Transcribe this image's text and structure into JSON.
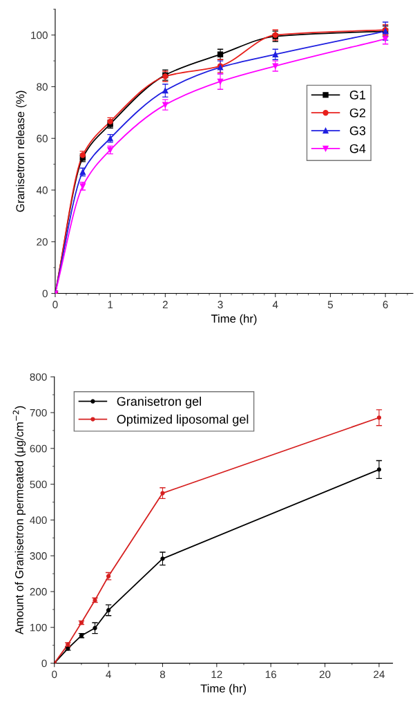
{
  "chart_data": [
    {
      "type": "line",
      "xlabel": "Time (hr)",
      "ylabel": "Granisetron release (%)",
      "x": [
        0,
        0.5,
        1,
        2,
        3,
        4,
        6
      ],
      "xlim": [
        0,
        6.5
      ],
      "ylim": [
        0,
        110
      ],
      "xticks": [
        0,
        1,
        2,
        3,
        4,
        5,
        6
      ],
      "yticks": [
        0,
        20,
        40,
        60,
        80,
        100
      ],
      "legend": "right",
      "grid": false,
      "line_style": "solid",
      "series": [
        {
          "name": "G1",
          "color": "#000000",
          "marker": "square",
          "values": [
            0,
            52.5,
            65.5,
            84.5,
            92.5,
            99.5,
            101.5
          ],
          "errors": [
            null,
            1.5,
            1.5,
            2,
            2,
            2,
            2
          ]
        },
        {
          "name": "G2",
          "color": "#e8201c",
          "marker": "circle",
          "values": [
            0,
            53.5,
            66.5,
            84,
            88,
            100,
            102
          ],
          "errors": [
            null,
            1.5,
            1.5,
            2,
            2.5,
            2,
            2
          ]
        },
        {
          "name": "G3",
          "color": "#1f1fe0",
          "marker": "triangle",
          "values": [
            0,
            47,
            60,
            78.5,
            87.5,
            92.5,
            101.5
          ],
          "errors": [
            null,
            1.5,
            1.5,
            2.5,
            2.5,
            2,
            3.5
          ]
        },
        {
          "name": "G4",
          "color": "#ff00ff",
          "marker": "triangle_down",
          "values": [
            0,
            41.5,
            55.5,
            73,
            82,
            88,
            98.5
          ],
          "errors": [
            null,
            1.5,
            1.5,
            2,
            3,
            2,
            2
          ]
        }
      ]
    },
    {
      "type": "line",
      "xlabel": "Time (hr)",
      "ylabel": "Amount of Granisetron permeated (μg/cm$^{−2}$)",
      "x": [
        0,
        1,
        2,
        3,
        4,
        8,
        24
      ],
      "xlim": [
        0,
        25
      ],
      "ylim": [
        0,
        800
      ],
      "xticks": [
        0,
        4,
        8,
        12,
        16,
        20,
        24
      ],
      "yticks": [
        0,
        100,
        200,
        300,
        400,
        500,
        600,
        700,
        800
      ],
      "legend": "top left",
      "grid": false,
      "line_style": "solid",
      "marker": "circle",
      "series": [
        {
          "name": "Granisetron gel",
          "color": "#000000",
          "values": [
            0,
            41,
            77,
            98,
            148,
            292,
            541
          ],
          "errors": [
            null,
            5,
            6,
            15,
            15,
            18,
            25
          ]
        },
        {
          "name": "Optimized liposomal gel",
          "color": "#d62020",
          "values": [
            0,
            52,
            113,
            176,
            243,
            475,
            686
          ],
          "errors": [
            null,
            5,
            5,
            6,
            10,
            15,
            22
          ]
        }
      ]
    }
  ]
}
